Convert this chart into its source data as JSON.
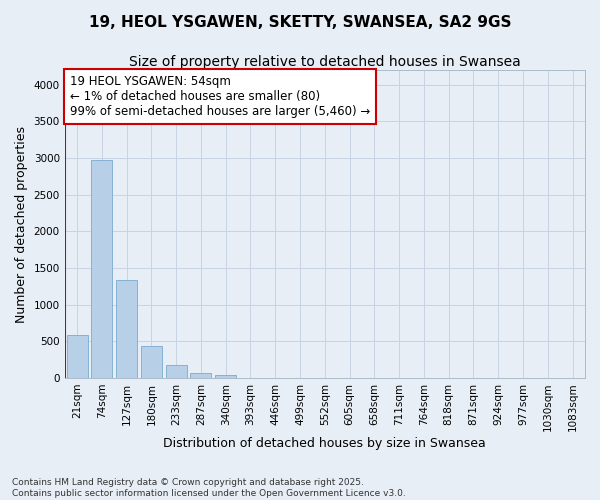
{
  "title1": "19, HEOL YSGAWEN, SKETTY, SWANSEA, SA2 9GS",
  "title2": "Size of property relative to detached houses in Swansea",
  "xlabel": "Distribution of detached houses by size in Swansea",
  "ylabel": "Number of detached properties",
  "categories": [
    "21sqm",
    "74sqm",
    "127sqm",
    "180sqm",
    "233sqm",
    "287sqm",
    "340sqm",
    "393sqm",
    "446sqm",
    "499sqm",
    "552sqm",
    "605sqm",
    "658sqm",
    "711sqm",
    "764sqm",
    "818sqm",
    "871sqm",
    "924sqm",
    "977sqm",
    "1030sqm",
    "1083sqm"
  ],
  "bar_values": [
    580,
    2970,
    1340,
    440,
    175,
    65,
    35,
    0,
    0,
    0,
    0,
    0,
    0,
    0,
    0,
    0,
    0,
    0,
    0,
    0,
    0
  ],
  "bar_color": "#b8cfe8",
  "bar_edge_color": "#7aaad0",
  "grid_color": "#c8d4e4",
  "background_color": "#e8eef6",
  "marker_color": "#cc0000",
  "ylim": [
    0,
    4200
  ],
  "yticks": [
    0,
    500,
    1000,
    1500,
    2000,
    2500,
    3000,
    3500,
    4000
  ],
  "annotation_text": "19 HEOL YSGAWEN: 54sqm\n← 1% of detached houses are smaller (80)\n99% of semi-detached houses are larger (5,460) →",
  "footnote": "Contains HM Land Registry data © Crown copyright and database right 2025.\nContains public sector information licensed under the Open Government Licence v3.0.",
  "title1_fontsize": 11,
  "title2_fontsize": 10,
  "axis_label_fontsize": 9,
  "tick_fontsize": 7.5,
  "annotation_fontsize": 8.5,
  "footnote_fontsize": 6.5
}
